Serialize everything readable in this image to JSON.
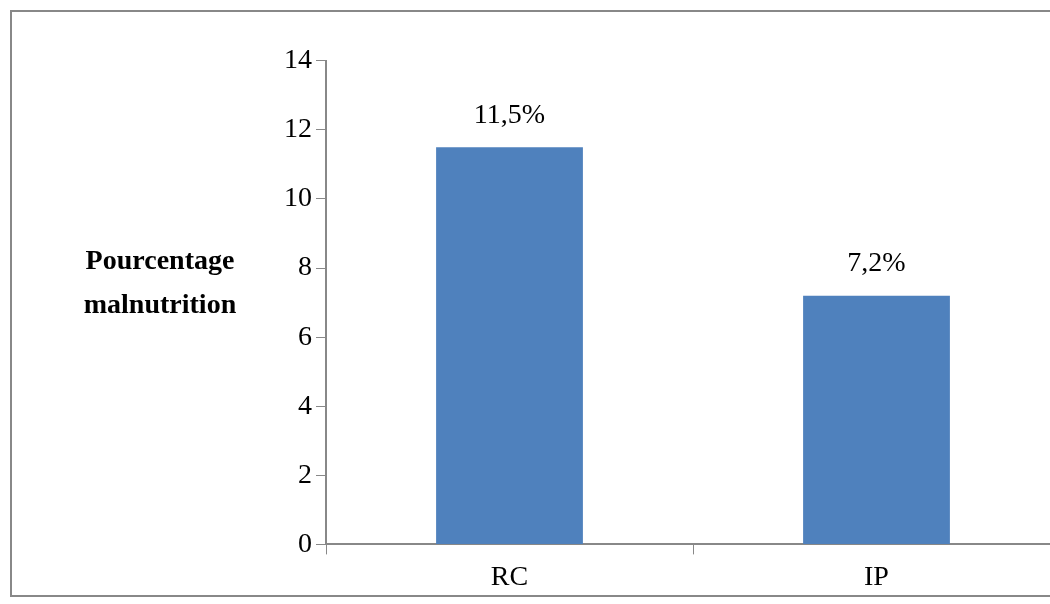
{
  "chart_data": {
    "type": "bar",
    "ylabel": "Pourcentage malnutrition",
    "categories": [
      "RC",
      "IP"
    ],
    "values": [
      11.5,
      7.2
    ],
    "value_labels": [
      "11,5%",
      "7,2%"
    ],
    "color": "#4f81bd",
    "ylim": [
      0,
      14
    ],
    "yticks": [
      0,
      2,
      4,
      6,
      8,
      10,
      12,
      14
    ]
  }
}
